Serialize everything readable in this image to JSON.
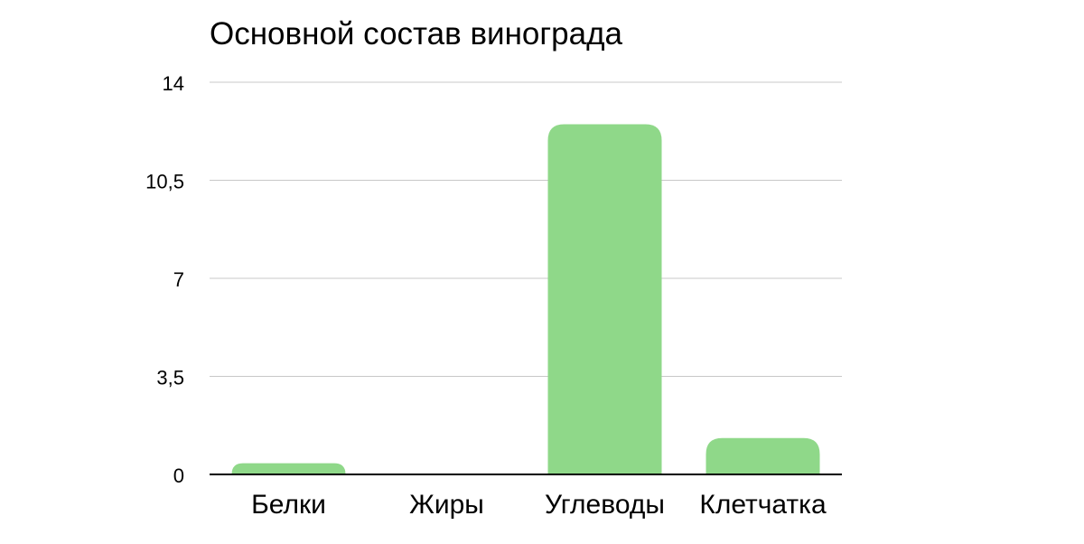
{
  "chart_data": {
    "type": "bar",
    "title": "Основной состав винограда",
    "categories": [
      "Белки",
      "Жиры",
      "Углеводы",
      "Клетчатка"
    ],
    "values": [
      0.4,
      0,
      12.5,
      1.3
    ],
    "y_ticks": [
      "0",
      "3,5",
      "7",
      "10,5",
      "14"
    ],
    "ylim": [
      0,
      14
    ],
    "xlabel": "",
    "ylabel": "",
    "grid": true,
    "bar_color": "#8fd889",
    "grid_color": "#c8c8c8",
    "axis_color": "#000000"
  }
}
